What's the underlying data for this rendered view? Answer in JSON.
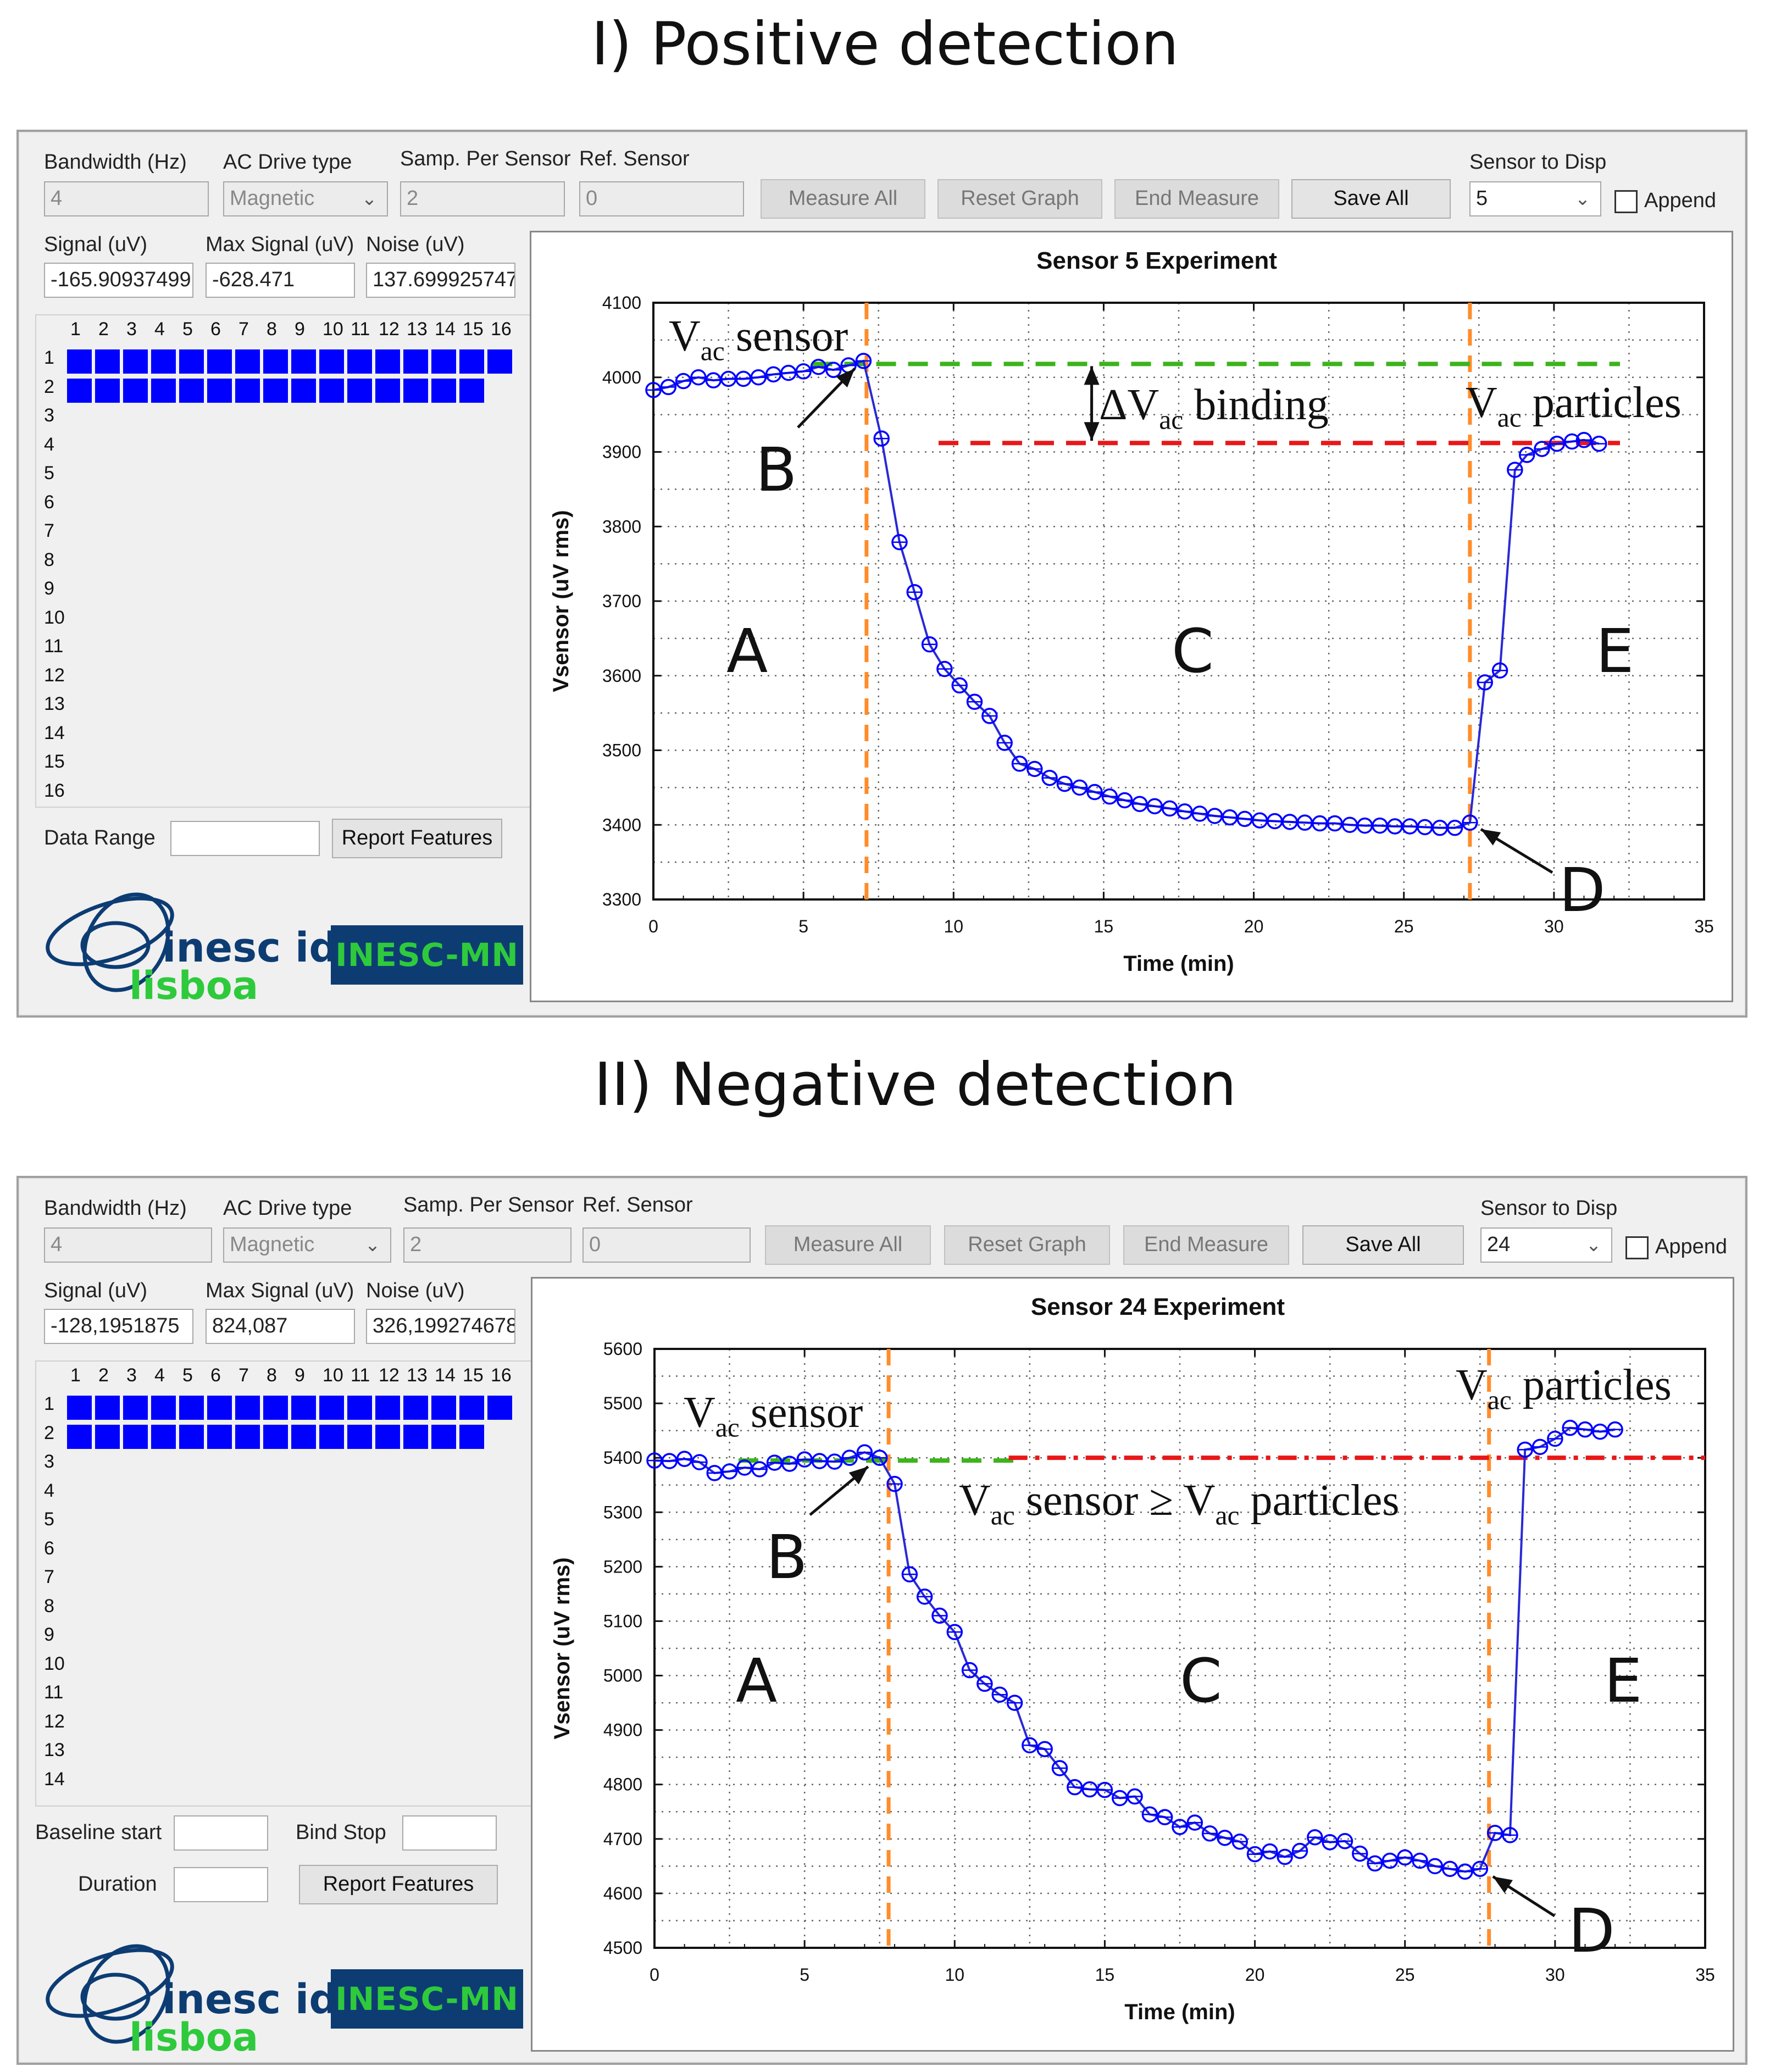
{
  "panels": [
    {
      "section_title": "I) Positive detection",
      "labels": {
        "bandwidth": "Bandwidth (Hz)",
        "ac_drive": "AC Drive type",
        "samp_per_sensor": "Samp. Per Sensor",
        "ref_sensor": "Ref. Sensor",
        "sensor_to_disp": "Sensor to Disp",
        "append": "Append",
        "signal": "Signal (uV)",
        "max_signal": "Max Signal (uV)",
        "noise": "Noise (uV)"
      },
      "values": {
        "bandwidth": "4",
        "ac_drive": "Magnetic",
        "samp_per_sensor": "2",
        "ref_sensor": "0",
        "sensor_to_disp": "5",
        "signal": "-165.90937499",
        "max_signal": "-628.471",
        "noise": "137.699925747"
      },
      "buttons": {
        "measure_all": "Measure All",
        "reset_graph": "Reset Graph",
        "end_measure": "End Measure",
        "save_all": "Save All",
        "report_features": "Report Features"
      },
      "sensor_grid": {
        "columns": [
          "1",
          "2",
          "3",
          "4",
          "5",
          "6",
          "7",
          "8",
          "9",
          "10",
          "11",
          "12",
          "13",
          "14",
          "15",
          "16"
        ],
        "rows": [
          "1",
          "2",
          "3",
          "4",
          "5",
          "6",
          "7",
          "8",
          "9",
          "10",
          "11",
          "12",
          "13",
          "14",
          "15",
          "16"
        ],
        "active_counts": [
          16,
          15
        ]
      },
      "bottom_fields": {
        "data_range_label": "Data Range",
        "data_range_value": ""
      },
      "logos": {
        "inesc_text": "inesc id",
        "lisboa_text": "lisboa",
        "mn_text": "INESC-MN"
      },
      "colors": {
        "marker": "#0000ff",
        "line": "#2929d6",
        "phase_line": "#ff8c2a",
        "baseline_green": "#3cb41c",
        "baseline_red": "#e81818"
      },
      "chart_data": {
        "type": "line",
        "title": "Sensor 5 Experiment",
        "xlabel": "Time (min)",
        "ylabel": "Vsensor (uV rms)",
        "xlim": [
          0,
          35
        ],
        "ylim": [
          3300,
          4100
        ],
        "x_ticks": [
          0,
          5,
          10,
          15,
          20,
          25,
          30,
          35
        ],
        "y_ticks": [
          3300,
          3400,
          3500,
          3600,
          3700,
          3800,
          3900,
          4000,
          4100
        ],
        "grid": true,
        "phase_lines_x": [
          7.1,
          27.2
        ],
        "green_baseline": {
          "x_start": 5.3,
          "x_end": 32.2,
          "y": 4018
        },
        "red_baseline": {
          "x_start": 9.5,
          "x_end": 32.2,
          "y": 3912
        },
        "binding_arrow": {
          "x": 14.6,
          "y_top": 4018,
          "y_bottom": 3912
        },
        "series": [
          {
            "x": [
              0.0,
              0.5,
              1.0,
              1.5,
              2.0,
              2.5,
              3.0,
              3.5,
              4.0,
              4.5,
              5.0,
              5.5,
              6.0,
              6.5,
              7.0,
              7.6,
              8.2,
              8.7,
              9.2,
              9.7,
              10.2,
              10.7,
              11.2,
              11.7,
              12.2,
              12.7,
              13.2,
              13.7,
              14.2,
              14.7,
              15.2,
              15.7,
              16.2,
              16.7,
              17.2,
              17.7,
              18.2,
              18.7,
              19.2,
              19.7,
              20.2,
              20.7,
              21.2,
              21.7,
              22.2,
              22.7,
              23.2,
              23.7,
              24.2,
              24.7,
              25.2,
              25.7,
              26.2,
              26.7,
              27.2,
              27.7,
              28.2,
              28.7,
              29.1,
              29.6,
              30.1,
              30.6,
              31.0,
              31.5
            ],
            "y": [
              3983,
              3987,
              3995,
              4000,
              3996,
              3998,
              3998,
              4000,
              4004,
              4006,
              4008,
              4014,
              4010,
              4016,
              4022,
              3918,
              3779,
              3712,
              3642,
              3609,
              3587,
              3565,
              3546,
              3510,
              3482,
              3475,
              3463,
              3455,
              3450,
              3444,
              3438,
              3433,
              3428,
              3425,
              3422,
              3418,
              3415,
              3412,
              3410,
              3408,
              3406,
              3405,
              3404,
              3403,
              3402,
              3402,
              3400,
              3399,
              3399,
              3398,
              3398,
              3397,
              3396,
              3396,
              3403,
              3591,
              3607,
              3876,
              3896,
              3904,
              3911,
              3914,
              3916,
              3911
            ]
          }
        ],
        "annotations": {
          "vac_sensor": {
            "main": "V",
            "sub": "ac",
            "rest": " sensor"
          },
          "binding": {
            "main": "ΔV",
            "sub": "ac",
            "rest": " binding"
          },
          "vac_particles": {
            "main": "V",
            "sub": "ac",
            "rest": " particles"
          },
          "region_a": "A",
          "region_b": "B",
          "region_c": "C",
          "region_d": "D",
          "region_e": "E"
        }
      }
    },
    {
      "section_title": "II) Negative detection",
      "labels": {
        "bandwidth": "Bandwidth (Hz)",
        "ac_drive": "AC Drive type",
        "samp_per_sensor": "Samp. Per Sensor",
        "ref_sensor": "Ref. Sensor",
        "sensor_to_disp": "Sensor to Disp",
        "append": "Append",
        "signal": "Signal (uV)",
        "max_signal": "Max Signal (uV)",
        "noise": "Noise (uV)"
      },
      "values": {
        "bandwidth": "4",
        "ac_drive": "Magnetic",
        "samp_per_sensor": "2",
        "ref_sensor": "0",
        "sensor_to_disp": "24",
        "signal": "-128,1951875",
        "max_signal": "824,087",
        "noise": "326,199274678"
      },
      "buttons": {
        "measure_all": "Measure All",
        "reset_graph": "Reset Graph",
        "end_measure": "End Measure",
        "save_all": "Save All",
        "report_features": "Report Features"
      },
      "sensor_grid": {
        "columns": [
          "1",
          "2",
          "3",
          "4",
          "5",
          "6",
          "7",
          "8",
          "9",
          "10",
          "11",
          "12",
          "13",
          "14",
          "15",
          "16"
        ],
        "rows": [
          "1",
          "2",
          "3",
          "4",
          "5",
          "6",
          "7",
          "8",
          "9",
          "10",
          "11",
          "12",
          "13",
          "14"
        ],
        "active_counts": [
          16,
          15
        ]
      },
      "bottom_fields": {
        "baseline_start_label": "Baseline start",
        "bind_stop_label": "Bind Stop",
        "duration_label": "Duration",
        "baseline_start_value": "",
        "bind_stop_value": "",
        "duration_value": ""
      },
      "logos": {
        "inesc_text": "inesc id",
        "lisboa_text": "lisboa",
        "mn_text": "INESC-MN"
      },
      "colors": {
        "marker": "#0000ff",
        "line": "#2929d6",
        "phase_line": "#ff8c2a",
        "baseline_green": "#3cb41c",
        "baseline_red": "#e81818"
      },
      "chart_data": {
        "type": "line",
        "title": "Sensor 24 Experiment",
        "xlabel": "Time (min)",
        "ylabel": "Vsensor (uV rms)",
        "xlim": [
          0,
          35
        ],
        "ylim": [
          4500,
          5600
        ],
        "x_ticks": [
          0,
          5,
          10,
          15,
          20,
          25,
          30,
          35
        ],
        "y_ticks": [
          4500,
          4600,
          4700,
          4800,
          4900,
          5000,
          5100,
          5200,
          5300,
          5400,
          5500,
          5600
        ],
        "grid": true,
        "phase_lines_x": [
          7.8,
          27.8
        ],
        "green_baseline": {
          "x_start": 2.8,
          "x_end": 12.0,
          "y": 5395
        },
        "red_baseline": {
          "x_start": 11.8,
          "x_end": 35.0,
          "y": 5400
        },
        "series": [
          {
            "x": [
              0.0,
              0.5,
              1.0,
              1.5,
              2.0,
              2.5,
              3.0,
              3.5,
              4.0,
              4.5,
              5.0,
              5.5,
              6.0,
              6.5,
              7.0,
              7.5,
              8.0,
              8.5,
              9.0,
              9.5,
              10.0,
              10.5,
              11.0,
              11.5,
              12.0,
              12.5,
              13.0,
              13.5,
              14.0,
              14.5,
              15.0,
              15.5,
              16.0,
              16.5,
              17.0,
              17.5,
              18.0,
              18.5,
              19.0,
              19.5,
              20.0,
              20.5,
              21.0,
              21.5,
              22.0,
              22.5,
              23.0,
              23.5,
              24.0,
              24.5,
              25.0,
              25.5,
              26.0,
              26.5,
              27.0,
              27.5,
              28.0,
              28.5,
              29.0,
              29.5,
              30.0,
              30.5,
              31.0,
              31.5,
              32.0
            ],
            "y": [
              5395,
              5394,
              5398,
              5392,
              5372,
              5375,
              5382,
              5379,
              5391,
              5389,
              5397,
              5394,
              5393,
              5400,
              5410,
              5400,
              5352,
              5186,
              5145,
              5110,
              5080,
              5010,
              4985,
              4965,
              4950,
              4872,
              4865,
              4830,
              4795,
              4791,
              4790,
              4775,
              4778,
              4745,
              4740,
              4722,
              4730,
              4710,
              4702,
              4695,
              4672,
              4677,
              4667,
              4678,
              4703,
              4694,
              4696,
              4673,
              4655,
              4660,
              4666,
              4660,
              4650,
              4645,
              4640,
              4645,
              4711,
              4707,
              5415,
              5420,
              5435,
              5455,
              5452,
              5448,
              5452
            ]
          }
        ],
        "annotations": {
          "vac_sensor": {
            "main": "V",
            "sub": "ac",
            "rest": " sensor"
          },
          "sensor_ge_particles": {
            "main1": "V",
            "sub1": "ac",
            "mid": " sensor ≥ V",
            "sub2": "ac",
            "rest": " particles"
          },
          "vac_particles": {
            "main": "V",
            "sub": "ac",
            "rest": " particles"
          },
          "region_a": "A",
          "region_b": "B",
          "region_c": "C",
          "region_d": "D",
          "region_e": "E"
        }
      }
    }
  ]
}
